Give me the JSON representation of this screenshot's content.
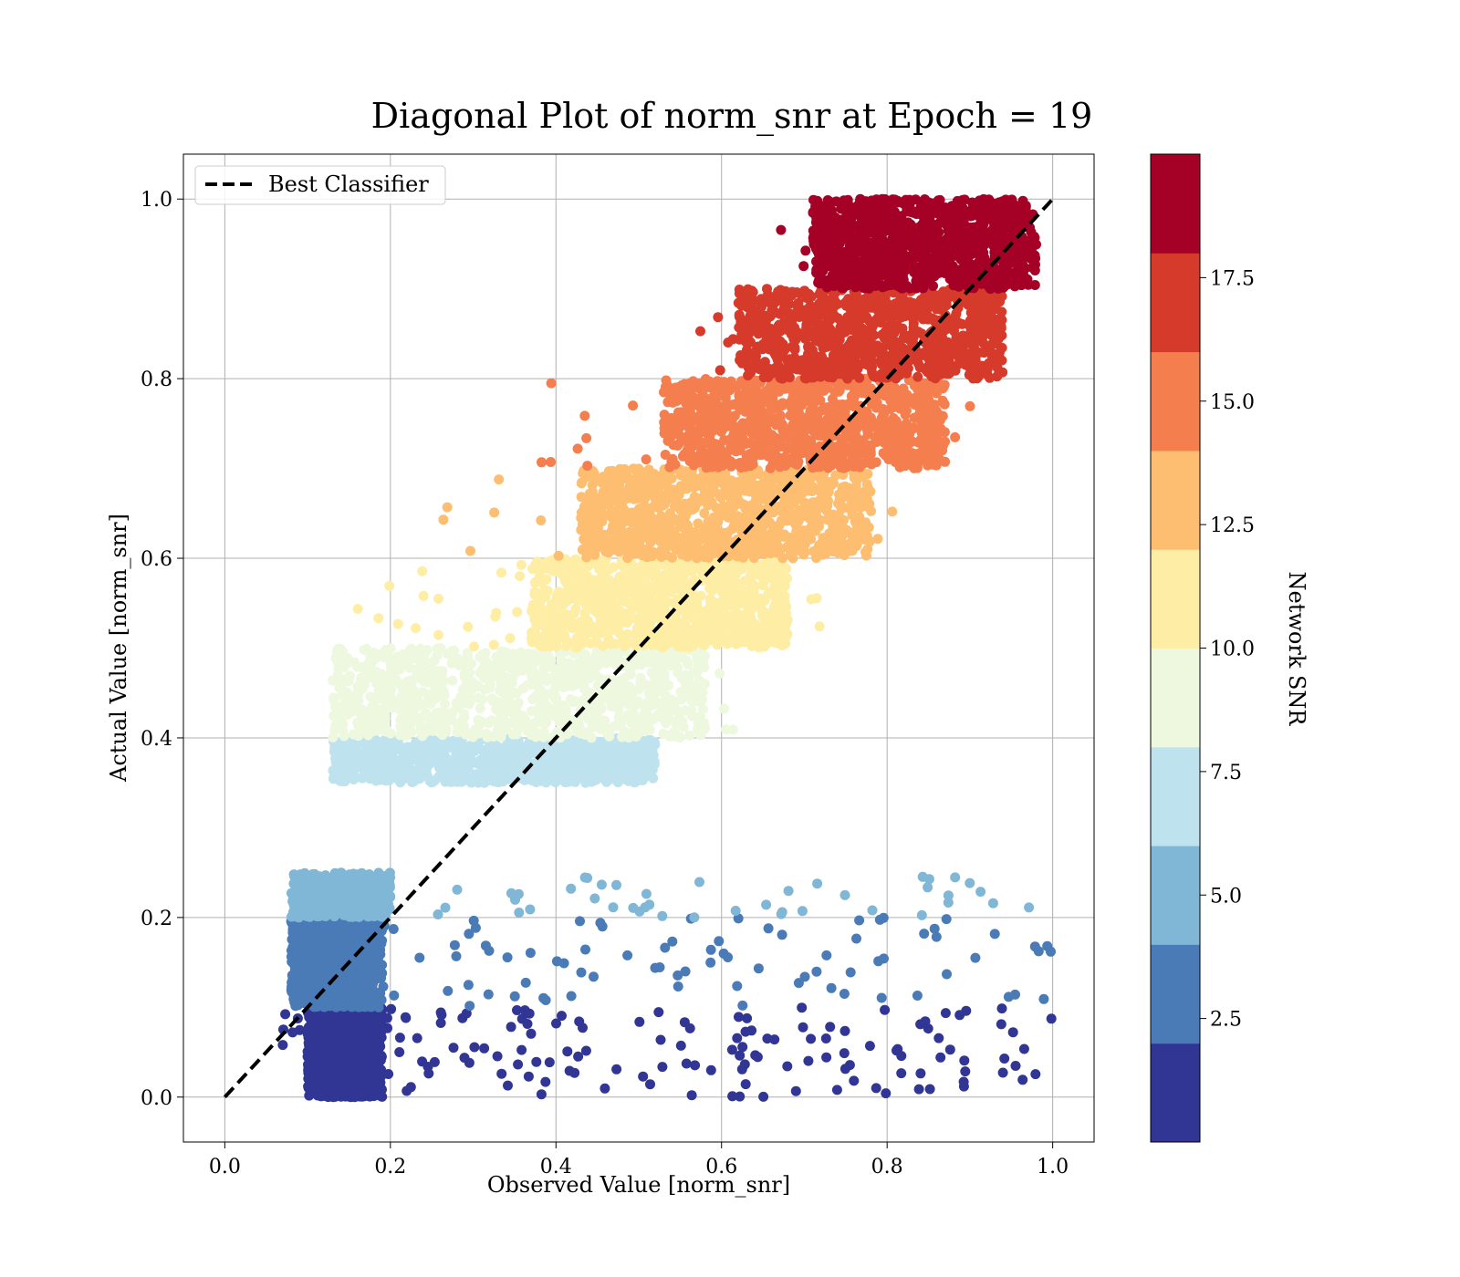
{
  "chart_data": {
    "type": "scatter",
    "title": "Diagonal Plot of norm_snr at Epoch = 19",
    "xlabel": "Observed Value [norm_snr]",
    "ylabel": "Actual Value [norm_snr]",
    "xlim": [
      -0.05,
      1.05
    ],
    "ylim": [
      -0.05,
      1.05
    ],
    "xticks": [
      "0.0",
      "0.2",
      "0.4",
      "0.6",
      "0.8",
      "1.0"
    ],
    "yticks": [
      "0.0",
      "0.2",
      "0.4",
      "0.6",
      "0.8",
      "1.0"
    ],
    "xtick_values": [
      0.0,
      0.2,
      0.4,
      0.6,
      0.8,
      1.0
    ],
    "ytick_values": [
      0.0,
      0.2,
      0.4,
      0.6,
      0.8,
      1.0
    ],
    "grid": true,
    "legend": {
      "position": "upper-left",
      "entries": [
        "Best Classifier"
      ]
    },
    "reference_line": {
      "label": "Best Classifier",
      "style": "dashed",
      "color": "#000000",
      "x": [
        0.0,
        1.0
      ],
      "y": [
        0.0,
        1.0
      ]
    },
    "colorbar": {
      "label": "Network SNR",
      "range": [
        0,
        20
      ],
      "ticks": [
        "2.5",
        "5.0",
        "7.5",
        "10.0",
        "12.5",
        "15.0",
        "17.5"
      ],
      "tick_values": [
        2.5,
        5.0,
        7.5,
        10.0,
        12.5,
        15.0,
        17.5
      ],
      "colors": [
        "#313695",
        "#4a7bb7",
        "#80b6d6",
        "#bfe2ef",
        "#eef8df",
        "#feeea5",
        "#fdbe71",
        "#f57e4f",
        "#d63a2a",
        "#a50026"
      ]
    },
    "bands": [
      {
        "snr_level": 1,
        "color": "#313695",
        "y_range": [
          0.0,
          0.1
        ],
        "x_core": [
          0.1,
          0.19
        ],
        "x_spread": [
          0.07,
          1.0
        ],
        "n_core": 1100,
        "n_sparse": 160
      },
      {
        "snr_level": 3,
        "color": "#4a7bb7",
        "y_range": [
          0.1,
          0.2
        ],
        "x_core": [
          0.08,
          0.19
        ],
        "x_spread": [
          0.06,
          1.0
        ],
        "n_core": 900,
        "n_sparse": 90
      },
      {
        "snr_level": 5,
        "color": "#80b6d6",
        "y_range": [
          0.2,
          0.25
        ],
        "x_core": [
          0.08,
          0.2
        ],
        "x_spread": [
          0.08,
          1.0
        ],
        "n_core": 500,
        "n_sparse": 50
      },
      {
        "snr_level": 7,
        "color": "#bfe2ef",
        "y_range": [
          0.35,
          0.4
        ],
        "x_core": [
          0.13,
          0.52
        ],
        "x_spread": [
          0.13,
          0.56
        ],
        "n_core": 900,
        "n_sparse": 15
      },
      {
        "snr_level": 9,
        "color": "#eef8df",
        "y_range": [
          0.4,
          0.5
        ],
        "x_core": [
          0.13,
          0.58
        ],
        "x_spread": [
          0.13,
          0.62
        ],
        "n_core": 1000,
        "n_sparse": 40
      },
      {
        "snr_level": 11,
        "color": "#feeea5",
        "y_range": [
          0.5,
          0.6
        ],
        "x_core": [
          0.37,
          0.68
        ],
        "x_spread": [
          0.16,
          0.72
        ],
        "n_core": 1000,
        "n_sparse": 40
      },
      {
        "snr_level": 13,
        "color": "#fdbe71",
        "y_range": [
          0.6,
          0.7
        ],
        "x_core": [
          0.43,
          0.78
        ],
        "x_spread": [
          0.25,
          0.83
        ],
        "n_core": 1000,
        "n_sparse": 35
      },
      {
        "snr_level": 15,
        "color": "#f57e4f",
        "y_range": [
          0.7,
          0.8
        ],
        "x_core": [
          0.53,
          0.87
        ],
        "x_spread": [
          0.38,
          0.91
        ],
        "n_core": 1000,
        "n_sparse": 35
      },
      {
        "snr_level": 17,
        "color": "#d63a2a",
        "y_range": [
          0.8,
          0.9
        ],
        "x_core": [
          0.62,
          0.94
        ],
        "x_spread": [
          0.57,
          0.96
        ],
        "n_core": 1000,
        "n_sparse": 30
      },
      {
        "snr_level": 19,
        "color": "#a50026",
        "y_range": [
          0.9,
          1.0
        ],
        "x_core": [
          0.71,
          0.98
        ],
        "x_spread": [
          0.67,
          0.98
        ],
        "n_core": 1100,
        "n_sparse": 30
      }
    ]
  }
}
